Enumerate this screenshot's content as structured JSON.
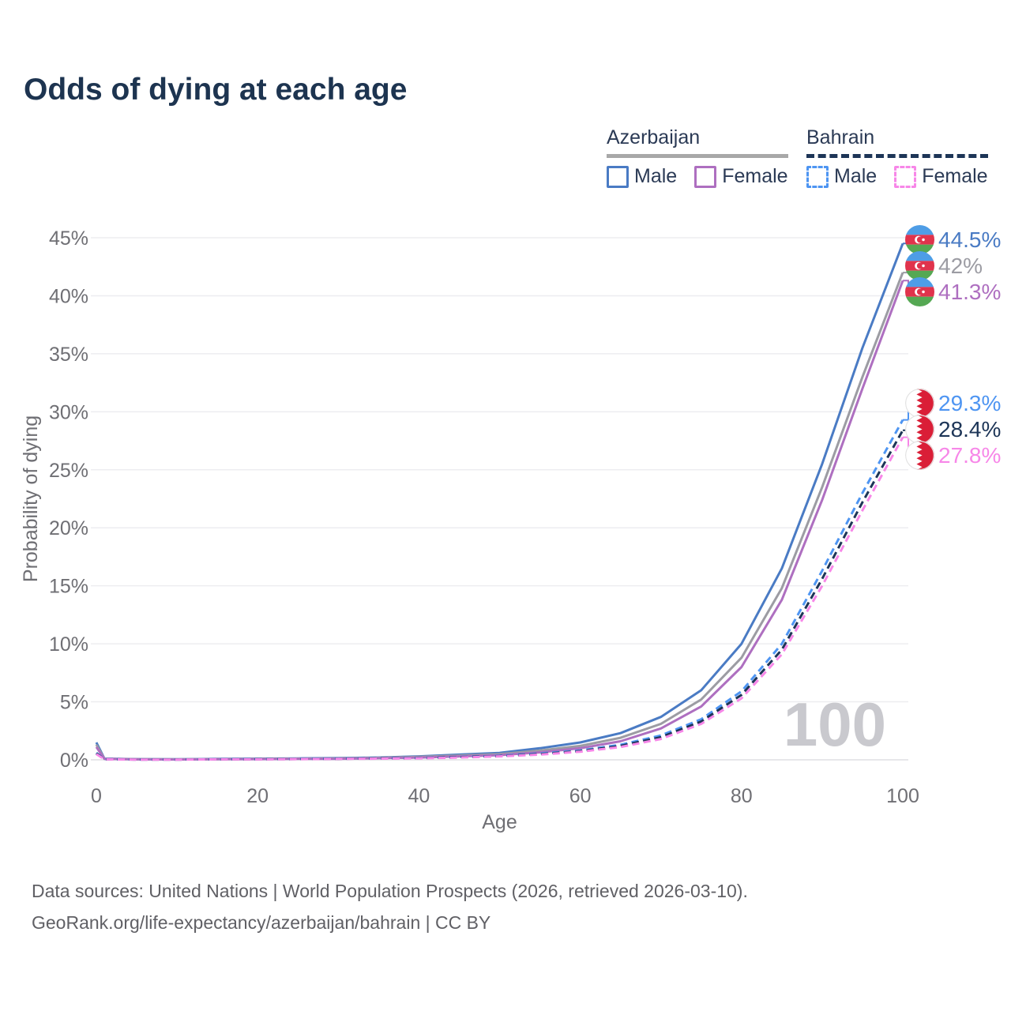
{
  "title": "Odds of dying at each age",
  "legend": {
    "groups": [
      {
        "country": "Azerbaijan",
        "line_style": "solid",
        "underline_color": "#a8a8a8",
        "items": [
          {
            "label": "Male",
            "color": "#4a7bc4",
            "dashed": false
          },
          {
            "label": "Female",
            "color": "#ae6fc0",
            "dashed": false
          }
        ]
      },
      {
        "country": "Bahrain",
        "line_style": "dashed",
        "underline_color": "#1d3557",
        "items": [
          {
            "label": "Male",
            "color": "#4e95f2",
            "dashed": true
          },
          {
            "label": "Female",
            "color": "#f787e8",
            "dashed": true
          }
        ]
      }
    ]
  },
  "chart_data": {
    "type": "line",
    "title": "Odds of dying at each age",
    "xlabel": "Age",
    "ylabel": "Probability of dying",
    "xlim": [
      0,
      100
    ],
    "ylim": [
      0,
      45
    ],
    "x_ticks": [
      0,
      20,
      40,
      60,
      80,
      100
    ],
    "y_ticks": [
      0,
      5,
      10,
      15,
      20,
      25,
      30,
      35,
      40,
      45
    ],
    "y_tick_suffix": "%",
    "grid": "horizontal",
    "legend_position": "top-right",
    "watermark": "100",
    "x": [
      0,
      1,
      5,
      10,
      15,
      20,
      25,
      30,
      35,
      40,
      45,
      50,
      55,
      60,
      65,
      70,
      75,
      80,
      85,
      90,
      95,
      100
    ],
    "series": [
      {
        "name": "Azerbaijan Male",
        "group": "azerbaijan",
        "flag": "azerbaijan",
        "color": "#4a7bc4",
        "dashed": false,
        "values": [
          1.5,
          0.1,
          0.06,
          0.05,
          0.08,
          0.1,
          0.12,
          0.15,
          0.2,
          0.3,
          0.45,
          0.6,
          1.0,
          1.5,
          2.3,
          3.7,
          6.0,
          10.0,
          16.5,
          25.5,
          35.5,
          44.5
        ],
        "end_label": "44.5%"
      },
      {
        "name": "Azerbaijan Both sexes",
        "group": "azerbaijan",
        "flag": "azerbaijan",
        "color": "#9c9ca3",
        "dashed": false,
        "values": [
          1.3,
          0.09,
          0.05,
          0.04,
          0.06,
          0.08,
          0.1,
          0.12,
          0.17,
          0.25,
          0.37,
          0.5,
          0.8,
          1.2,
          1.9,
          3.1,
          5.2,
          8.8,
          14.8,
          23.5,
          33.0,
          42.0
        ],
        "end_label": "42%"
      },
      {
        "name": "Azerbaijan Female",
        "group": "azerbaijan",
        "flag": "azerbaijan",
        "color": "#ae6fc0",
        "dashed": false,
        "values": [
          1.1,
          0.08,
          0.04,
          0.03,
          0.05,
          0.06,
          0.08,
          0.09,
          0.14,
          0.2,
          0.3,
          0.4,
          0.65,
          1.0,
          1.6,
          2.7,
          4.6,
          8.0,
          13.8,
          22.4,
          32.0,
          41.3
        ],
        "end_label": "41.3%"
      },
      {
        "name": "Bahrain Male",
        "group": "bahrain",
        "flag": "bahrain",
        "color": "#4e95f2",
        "dashed": true,
        "values": [
          0.6,
          0.05,
          0.03,
          0.03,
          0.05,
          0.06,
          0.08,
          0.1,
          0.13,
          0.16,
          0.25,
          0.35,
          0.55,
          0.8,
          1.3,
          2.1,
          3.5,
          5.9,
          10.0,
          16.3,
          23.0,
          29.3
        ],
        "end_label": "29.3%"
      },
      {
        "name": "Bahrain Both sexes",
        "group": "bahrain",
        "flag": "bahrain",
        "color": "#1d3557",
        "dashed": true,
        "values": [
          0.55,
          0.05,
          0.03,
          0.03,
          0.04,
          0.05,
          0.07,
          0.09,
          0.12,
          0.15,
          0.23,
          0.32,
          0.5,
          0.75,
          1.2,
          1.95,
          3.3,
          5.6,
          9.5,
          15.6,
          22.2,
          28.4
        ],
        "end_label": "28.4%"
      },
      {
        "name": "Bahrain Female",
        "group": "bahrain",
        "flag": "bahrain",
        "color": "#f787e8",
        "dashed": true,
        "values": [
          0.5,
          0.04,
          0.02,
          0.02,
          0.04,
          0.04,
          0.06,
          0.08,
          0.1,
          0.13,
          0.2,
          0.3,
          0.45,
          0.7,
          1.1,
          1.8,
          3.1,
          5.3,
          9.1,
          15.0,
          21.5,
          27.8
        ],
        "end_label": "27.8%"
      }
    ],
    "colors": {
      "grid": "#ededf0",
      "axis_zero_line": "#dfdfe3",
      "tick_text": "#6f6f74",
      "watermark": "#c9c9ce",
      "title_text": "#1d3450"
    },
    "flag_colors": {
      "azerbaijan_blue": "#4e9de6",
      "azerbaijan_red": "#e0334c",
      "azerbaijan_green": "#55a853",
      "bahrain_red": "#da1e37",
      "bahrain_white": "#ffffff"
    }
  },
  "footer": {
    "line1": "Data sources: United Nations | World Population Prospects (2026, retrieved 2026-03-10).",
    "line2": "GeoRank.org/life-expectancy/azerbaijan/bahrain | CC BY"
  }
}
